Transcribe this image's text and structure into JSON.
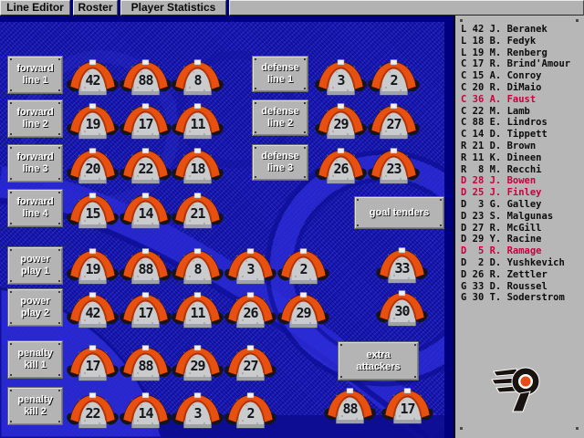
{
  "menu": {
    "tabs": [
      {
        "id": "line-editor",
        "label": "Line Editor"
      },
      {
        "id": "roster",
        "label": "Roster"
      },
      {
        "id": "player-statistics",
        "label": "Player Statistics"
      }
    ]
  },
  "lines": [
    {
      "id": "forward-line-1",
      "label": "forward line 1",
      "label_lines": [
        "forward",
        "line 1"
      ],
      "jerseys": [
        42,
        88,
        8
      ]
    },
    {
      "id": "forward-line-2",
      "label": "forward line 2",
      "label_lines": [
        "forward",
        "line 2"
      ],
      "jerseys": [
        19,
        17,
        11
      ]
    },
    {
      "id": "forward-line-3",
      "label": "forward line 3",
      "label_lines": [
        "forward",
        "line 3"
      ],
      "jerseys": [
        20,
        22,
        18
      ]
    },
    {
      "id": "forward-line-4",
      "label": "forward line 4",
      "label_lines": [
        "forward",
        "line 4"
      ],
      "jerseys": [
        15,
        14,
        21
      ]
    },
    {
      "id": "defense-line-1",
      "label": "defense line 1",
      "label_lines": [
        "defense",
        "line 1"
      ],
      "jerseys": [
        3,
        2
      ]
    },
    {
      "id": "defense-line-2",
      "label": "defense line 2",
      "label_lines": [
        "defense",
        "line 2"
      ],
      "jerseys": [
        29,
        27
      ]
    },
    {
      "id": "defense-line-3",
      "label": "defense line 3",
      "label_lines": [
        "defense",
        "line 3"
      ],
      "jerseys": [
        26,
        23
      ]
    },
    {
      "id": "goal-tenders",
      "label": "goal tenders",
      "label_lines": [
        "goal tenders"
      ],
      "jerseys": [
        33,
        30
      ]
    },
    {
      "id": "power-play-1",
      "label": "power play 1",
      "label_lines": [
        "power",
        "play 1"
      ],
      "jerseys": [
        19,
        88,
        8,
        3,
        2
      ]
    },
    {
      "id": "power-play-2",
      "label": "power play 2",
      "label_lines": [
        "power",
        "play 2"
      ],
      "jerseys": [
        42,
        17,
        11,
        26,
        29
      ]
    },
    {
      "id": "penalty-kill-1",
      "label": "penalty kill 1",
      "label_lines": [
        "penalty",
        "kill 1"
      ],
      "jerseys": [
        17,
        88,
        29,
        27
      ]
    },
    {
      "id": "penalty-kill-2",
      "label": "penalty kill 2",
      "label_lines": [
        "penalty",
        "kill 2"
      ],
      "jerseys": [
        22,
        14,
        3,
        2
      ]
    },
    {
      "id": "extra-attackers",
      "label": "extra attackers",
      "label_lines": [
        "extra",
        "attackers"
      ],
      "jerseys": [
        88,
        17
      ]
    }
  ],
  "roster": {
    "players": [
      {
        "pos": "L",
        "num": 42,
        "name": "J. Beranek",
        "highlighted": false
      },
      {
        "pos": "L",
        "num": 18,
        "name": "B. Fedyk",
        "highlighted": false
      },
      {
        "pos": "L",
        "num": 19,
        "name": "M. Renberg",
        "highlighted": false
      },
      {
        "pos": "C",
        "num": 17,
        "name": "R. Brind'Amour",
        "highlighted": false
      },
      {
        "pos": "C",
        "num": 15,
        "name": "A. Conroy",
        "highlighted": false
      },
      {
        "pos": "C",
        "num": 20,
        "name": "R. DiMaio",
        "highlighted": false
      },
      {
        "pos": "C",
        "num": 36,
        "name": "A. Faust",
        "highlighted": true
      },
      {
        "pos": "C",
        "num": 22,
        "name": "M. Lamb",
        "highlighted": false
      },
      {
        "pos": "C",
        "num": 88,
        "name": "E. Lindros",
        "highlighted": false
      },
      {
        "pos": "C",
        "num": 14,
        "name": "D. Tippett",
        "highlighted": false
      },
      {
        "pos": "R",
        "num": 21,
        "name": "D. Brown",
        "highlighted": false
      },
      {
        "pos": "R",
        "num": 11,
        "name": "K. Dineen",
        "highlighted": false
      },
      {
        "pos": "R",
        "num": 8,
        "name": "M. Recchi",
        "highlighted": false
      },
      {
        "pos": "D",
        "num": 28,
        "name": "J. Bowen",
        "highlighted": true
      },
      {
        "pos": "D",
        "num": 25,
        "name": "J. Finley",
        "highlighted": true
      },
      {
        "pos": "D",
        "num": 3,
        "name": "G. Galley",
        "highlighted": false
      },
      {
        "pos": "D",
        "num": 23,
        "name": "S. Malgunas",
        "highlighted": false
      },
      {
        "pos": "D",
        "num": 27,
        "name": "R. McGill",
        "highlighted": false
      },
      {
        "pos": "D",
        "num": 29,
        "name": "Y. Racine",
        "highlighted": false
      },
      {
        "pos": "D",
        "num": 5,
        "name": "R. Ramage",
        "highlighted": true
      },
      {
        "pos": "D",
        "num": 2,
        "name": "D. Yushkevich",
        "highlighted": false
      },
      {
        "pos": "D",
        "num": 26,
        "name": "R. Zettler",
        "highlighted": false
      },
      {
        "pos": "G",
        "num": 33,
        "name": "D. Roussel",
        "highlighted": false
      },
      {
        "pos": "G",
        "num": 30,
        "name": "T. Soderstrom",
        "highlighted": false
      }
    ]
  },
  "colors": {
    "jersey_orange": "#e8500f",
    "jersey_body": "#c9cbcd",
    "highlight_red": "#c8003f",
    "panel_gray": "#b7b7b7",
    "navy": "#00007e",
    "felt_blue": "#1717b4"
  }
}
